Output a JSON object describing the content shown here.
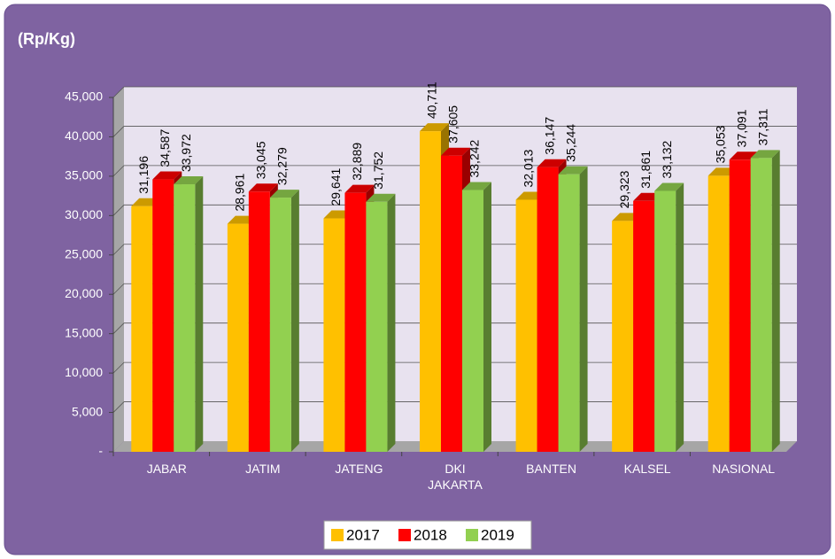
{
  "chart_data": {
    "type": "bar3d",
    "y_label": "(Rp/Kg)",
    "categories": [
      "JABAR",
      "JATIM",
      "JATENG",
      "DKI JAKARTA",
      "BANTEN",
      "KALSEL",
      "NASIONAL"
    ],
    "series": [
      {
        "name": "2017",
        "color": "#FFC000",
        "values": [
          31196,
          28961,
          29641,
          40711,
          32013,
          29323,
          35053
        ],
        "value_labels": [
          "31,196",
          "28,961",
          "29,641",
          "40,711",
          "32,013",
          "29,323",
          "35,053"
        ]
      },
      {
        "name": "2018",
        "color": "#FF0000",
        "values": [
          34587,
          33045,
          32889,
          37605,
          36147,
          31861,
          37091
        ],
        "value_labels": [
          "34,587",
          "33,045",
          "32,889",
          "37,605",
          "36,147",
          "31,861",
          "37,091"
        ]
      },
      {
        "name": "2019",
        "color": "#92D050",
        "values": [
          33972,
          32279,
          31752,
          33242,
          35244,
          33132,
          37311
        ],
        "value_labels": [
          "33,972",
          "32,279",
          "31,752",
          "33,242",
          "35,244",
          "33,132",
          "37,311"
        ]
      }
    ],
    "ylim": [
      0,
      45000
    ],
    "yticks": [
      {
        "value": 0,
        "label": "-"
      },
      {
        "value": 5000,
        "label": "5,000"
      },
      {
        "value": 10000,
        "label": "10,000"
      },
      {
        "value": 15000,
        "label": "15,000"
      },
      {
        "value": 20000,
        "label": "20,000"
      },
      {
        "value": 25000,
        "label": "25,000"
      },
      {
        "value": 30000,
        "label": "30,000"
      },
      {
        "value": 35000,
        "label": "35,000"
      },
      {
        "value": 40000,
        "label": "40,000"
      },
      {
        "value": 45000,
        "label": "45,000"
      }
    ],
    "grid": true,
    "legend": "bottom"
  }
}
